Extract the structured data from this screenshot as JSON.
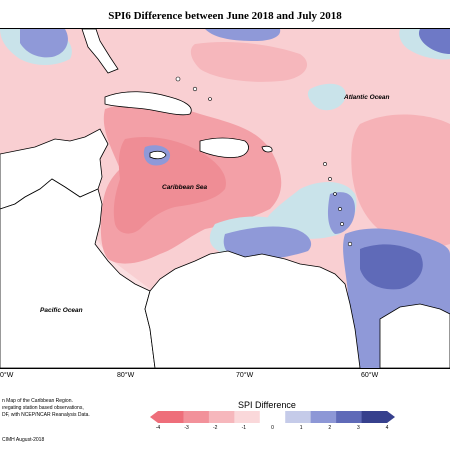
{
  "title": "SPI6 Difference between June 2018 and July 2018",
  "map": {
    "labels": {
      "atlantic": "Atlantic Ocean",
      "caribbean": "Caribbean Sea",
      "pacific": "Pacific Ocean"
    },
    "longitudes": [
      "0°W",
      "80°W",
      "70°W",
      "60°W"
    ]
  },
  "credits": [
    "n Map of the Caribbean Region.",
    "ıregating station based observations,",
    "DF, with NCEP/NCAR Reanalysis Data."
  ],
  "copyright": "CIMH August-2018",
  "legend": {
    "title": "SPI Difference",
    "ticks": [
      "-4",
      "-3",
      "-2",
      "-1",
      "0",
      "1",
      "2",
      "3",
      "4"
    ],
    "colors": [
      "#ee6e7a",
      "#f2919a",
      "#f6b7bc",
      "#fad8da",
      "#ffffff",
      "#c5cbe9",
      "#8d97d6",
      "#5f6ab8",
      "#36408d"
    ]
  },
  "colors": {
    "deep_red": "#f08890",
    "mid_red": "#f6b4b9",
    "light_red": "#fbd6d8",
    "light_blue": "#c9e3ea",
    "mid_blue": "#8f99d8",
    "deep_blue": "#5f6ab8",
    "land": "#ffffff",
    "coast": "#000000"
  }
}
